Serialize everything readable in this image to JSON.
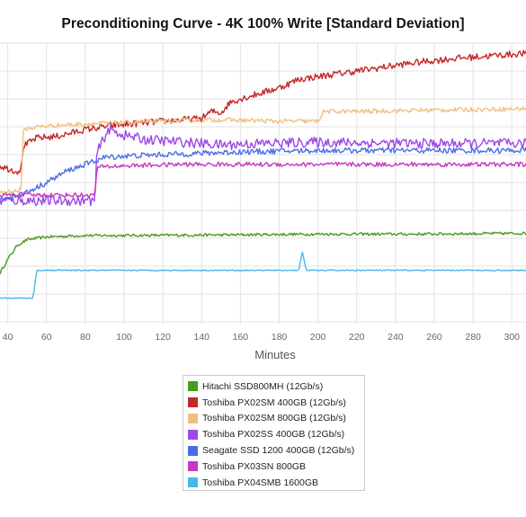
{
  "chart_data": {
    "type": "line",
    "title": "Preconditioning Curve - 4K 100% Write [Standard Deviation]",
    "xlabel": "Minutes",
    "ylabel": "",
    "x_ticks": [
      40,
      60,
      80,
      100,
      120,
      140,
      160,
      180,
      200,
      220,
      240,
      260,
      280,
      300
    ],
    "xlim": [
      36,
      310
    ],
    "ylim": [
      0,
      10
    ],
    "grid": true,
    "legend_position": "bottom",
    "series": [
      {
        "name": "Hitachi SSD800MH (12Gb/s)",
        "color": "#4a9a1c",
        "points": [
          [
            36,
            1.75
          ],
          [
            40,
            2.25
          ],
          [
            45,
            2.75
          ],
          [
            50,
            2.95
          ],
          [
            60,
            3.05
          ],
          [
            80,
            3.1
          ],
          [
            100,
            3.1
          ],
          [
            150,
            3.12
          ],
          [
            200,
            3.15
          ],
          [
            250,
            3.15
          ],
          [
            310,
            3.18
          ]
        ]
      },
      {
        "name": "Toshiba PX02SM 400GB (12Gb/s)",
        "color": "#c42828",
        "points": [
          [
            36,
            5.6
          ],
          [
            40,
            5.5
          ],
          [
            45,
            5.4
          ],
          [
            47,
            5.5
          ],
          [
            48,
            6.3
          ],
          [
            55,
            6.6
          ],
          [
            65,
            6.65
          ],
          [
            80,
            6.9
          ],
          [
            95,
            7.05
          ],
          [
            120,
            7.2
          ],
          [
            140,
            7.3
          ],
          [
            145,
            7.55
          ],
          [
            150,
            7.5
          ],
          [
            155,
            7.9
          ],
          [
            165,
            8.1
          ],
          [
            180,
            8.4
          ],
          [
            190,
            8.7
          ],
          [
            210,
            8.9
          ],
          [
            230,
            9.1
          ],
          [
            250,
            9.3
          ],
          [
            270,
            9.45
          ],
          [
            290,
            9.55
          ],
          [
            310,
            9.65
          ]
        ]
      },
      {
        "name": "Toshiba PX02SM 800GB (12Gb/s)",
        "color": "#f0c080",
        "points": [
          [
            36,
            4.65
          ],
          [
            45,
            4.7
          ],
          [
            47,
            4.75
          ],
          [
            48,
            6.9
          ],
          [
            55,
            7.0
          ],
          [
            65,
            7.05
          ],
          [
            80,
            7.1
          ],
          [
            100,
            7.15
          ],
          [
            120,
            7.2
          ],
          [
            150,
            7.25
          ],
          [
            180,
            7.2
          ],
          [
            200,
            7.2
          ],
          [
            203,
            7.55
          ],
          [
            220,
            7.55
          ],
          [
            260,
            7.6
          ],
          [
            310,
            7.65
          ]
        ]
      },
      {
        "name": "Toshiba PX02SS 400GB (12Gb/s)",
        "color": "#9b4ae8",
        "points": [
          [
            36,
            4.35
          ],
          [
            60,
            4.35
          ],
          [
            85,
            4.35
          ],
          [
            86,
            6.1
          ],
          [
            92,
            6.9
          ],
          [
            100,
            6.7
          ],
          [
            110,
            6.55
          ],
          [
            130,
            6.45
          ],
          [
            150,
            6.35
          ],
          [
            170,
            6.4
          ],
          [
            200,
            6.45
          ],
          [
            250,
            6.4
          ],
          [
            310,
            6.4
          ]
        ]
      },
      {
        "name": "Seagate SSD 1200 400GB (12Gb/s)",
        "color": "#4a6ee8",
        "points": [
          [
            36,
            4.4
          ],
          [
            50,
            4.65
          ],
          [
            60,
            5.0
          ],
          [
            70,
            5.4
          ],
          [
            80,
            5.65
          ],
          [
            90,
            5.9
          ],
          [
            100,
            5.95
          ],
          [
            120,
            6.0
          ],
          [
            140,
            6.05
          ],
          [
            160,
            6.1
          ],
          [
            200,
            6.15
          ],
          [
            250,
            6.15
          ],
          [
            310,
            6.15
          ]
        ]
      },
      {
        "name": "Toshiba PX03SN 800GB",
        "color": "#c838c0",
        "points": [
          [
            36,
            4.55
          ],
          [
            60,
            4.55
          ],
          [
            85,
            4.55
          ],
          [
            86,
            5.55
          ],
          [
            100,
            5.6
          ],
          [
            130,
            5.65
          ],
          [
            160,
            5.65
          ],
          [
            200,
            5.65
          ],
          [
            250,
            5.65
          ],
          [
            310,
            5.65
          ]
        ]
      },
      {
        "name": "Toshiba PX04SMB 1600GB",
        "color": "#48b8e8",
        "points": [
          [
            36,
            0.85
          ],
          [
            53,
            0.85
          ],
          [
            55,
            1.85
          ],
          [
            100,
            1.85
          ],
          [
            150,
            1.85
          ],
          [
            190,
            1.85
          ],
          [
            192,
            2.5
          ],
          [
            194,
            1.85
          ],
          [
            250,
            1.85
          ],
          [
            310,
            1.85
          ]
        ]
      }
    ]
  }
}
